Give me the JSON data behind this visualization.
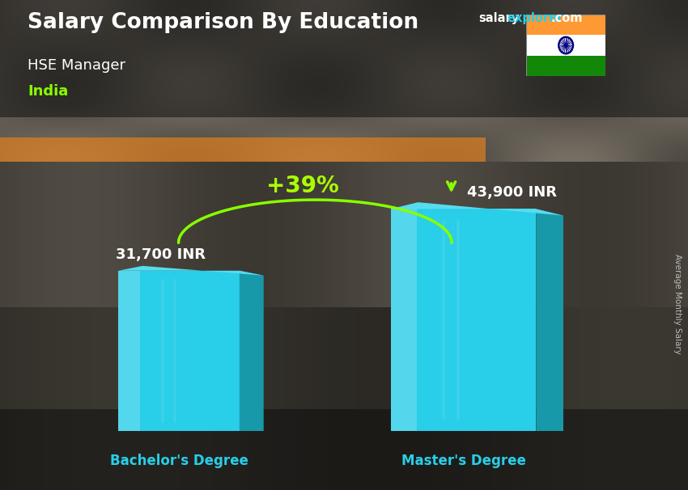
{
  "title": "Salary Comparison By Education",
  "subtitle": "HSE Manager",
  "country": "India",
  "categories": [
    "Bachelor's Degree",
    "Master's Degree"
  ],
  "values": [
    31700,
    43900
  ],
  "value_labels": [
    "31,700 INR",
    "43,900 INR"
  ],
  "pct_change": "+39%",
  "bar_front_color": "#29CEE8",
  "bar_side_color": "#1899AA",
  "bar_top_color": "#55DDEE",
  "bar_top_dark": "#2AABB8",
  "title_color": "#FFFFFF",
  "subtitle_color": "#FFFFFF",
  "country_color": "#88FF00",
  "value_color": "#FFFFFF",
  "pct_color": "#AAFF00",
  "xlabel_color": "#29CEE8",
  "bg_color_top": "#3a3a3a",
  "bg_color_bottom": "#1a1a1a",
  "ylabel_text": "Average Monthly Salary",
  "site_salary": "salary",
  "site_explorer": "explorer",
  "site_dot_com": ".com",
  "flag_orange": "#FF9933",
  "flag_white": "#FFFFFF",
  "flag_green": "#138808",
  "flag_chakra": "#000080",
  "arrow_color": "#88FF00"
}
